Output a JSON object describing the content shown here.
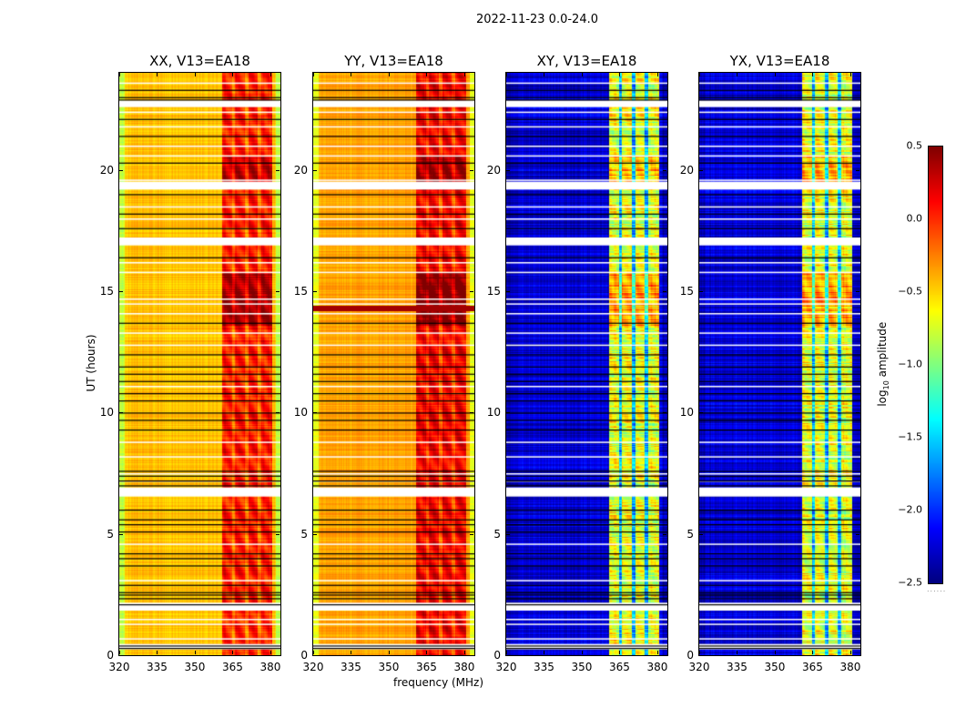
{
  "chart_data": {
    "type": "heatmap",
    "suptitle": "2022-11-23 0.0-24.0",
    "xlabel": "frequency (MHz)",
    "ylabel": "UT (hours)",
    "xlim": [
      320,
      384
    ],
    "ylim": [
      0,
      24
    ],
    "xticks": [
      320,
      335,
      350,
      365,
      380
    ],
    "xtick_labels": [
      "320",
      "335",
      "350",
      "365",
      "380"
    ],
    "yticks": [
      0,
      5,
      10,
      15,
      20
    ],
    "ytick_labels": [
      "0",
      "5",
      "10",
      "15",
      "20"
    ],
    "colorbar": {
      "label": "log10 amplitude",
      "label_main": "log",
      "label_sub": "10",
      "label_rest": " amplitude",
      "colormap": "jet",
      "vmin": -2.5,
      "vmax": 0.5,
      "ticks": [
        0.5,
        0.0,
        -0.5,
        -1.0,
        -1.5,
        -2.0,
        -2.5
      ],
      "tick_labels": [
        "0.5",
        "0.0",
        "−0.5",
        "−1.0",
        "−1.5",
        "−2.0",
        "−2.5"
      ],
      "extra_label": "......"
    },
    "hot_band_mhz": [
      360.5,
      380.5
    ],
    "hot_channel_gaps_mhz": [
      365.2,
      370.4,
      375.6
    ],
    "panels": [
      {
        "title": "XX, V13=EA18",
        "pol": "XX",
        "baseline_level": -0.45,
        "band_level": 0.05
      },
      {
        "title": "YY, V13=EA18",
        "pol": "YY",
        "baseline_level": -0.35,
        "band_level": 0.15
      },
      {
        "title": "XY, V13=EA18",
        "pol": "XY",
        "baseline_level": -2.25,
        "band_level": -0.7
      },
      {
        "title": "YX, V13=EA18",
        "pol": "YX",
        "baseline_level": -2.25,
        "band_level": -0.7
      }
    ],
    "flagged_rows_hours": [
      0.35,
      1.95,
      2.05,
      6.65,
      6.8,
      17.0,
      17.1,
      19.3,
      19.4,
      22.7,
      22.75
    ],
    "black_rows_hours": [
      0.3,
      0.4,
      2.1,
      2.35,
      2.5,
      2.6,
      2.9,
      3.7,
      4.0,
      4.2,
      5.1,
      5.4,
      5.6,
      6.0,
      7.0,
      7.2,
      7.4,
      7.6,
      9.3,
      9.7,
      10.0,
      10.5,
      10.8,
      11.3,
      11.6,
      11.9,
      12.4,
      13.7,
      16.4,
      17.6,
      18.2,
      19.0,
      20.3,
      21.4,
      22.1,
      22.9,
      23.0,
      23.3
    ],
    "white_rows_hours": [
      0.7,
      1.3,
      1.5,
      3.1,
      4.6,
      7.2,
      7.5,
      8.2,
      8.8,
      11.1,
      12.8,
      13.3,
      14.1,
      14.5,
      14.7,
      15.8,
      16.2,
      18.0,
      18.5,
      19.6,
      20.6,
      21.0,
      21.8,
      22.4,
      23.6
    ],
    "bright_event_hours": [
      14.3
    ]
  }
}
